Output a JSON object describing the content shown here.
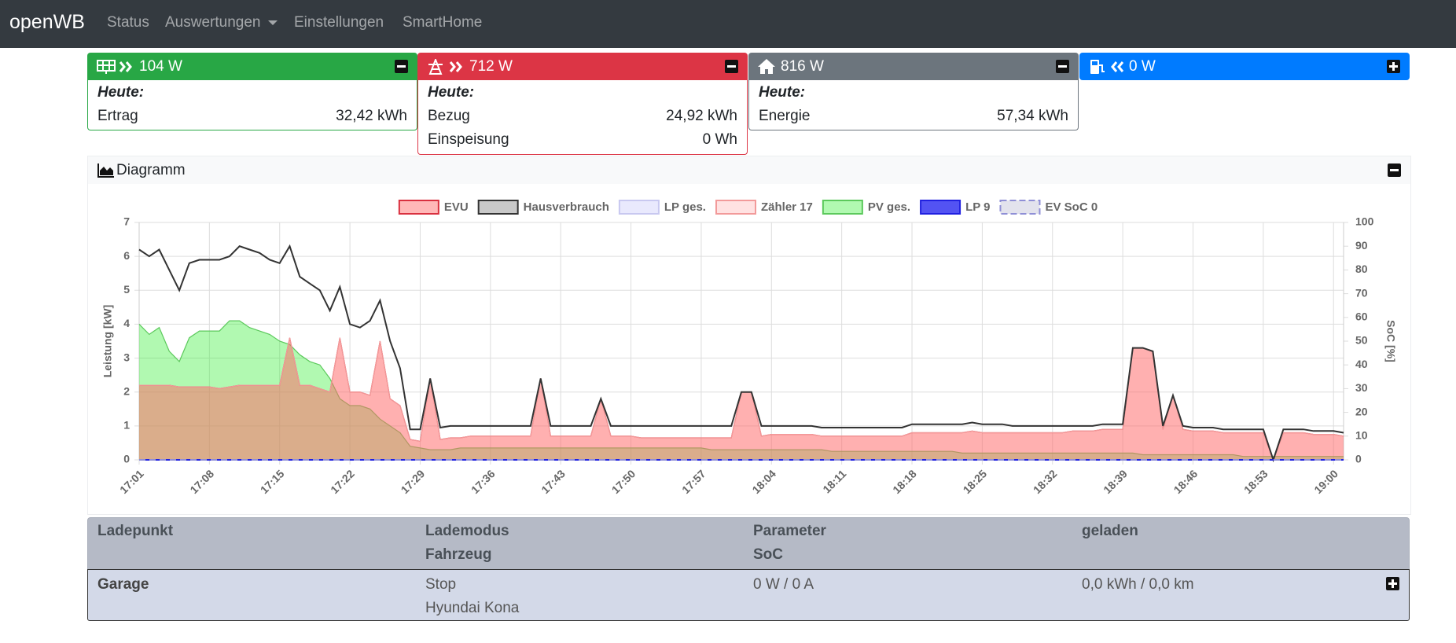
{
  "navbar": {
    "brand": "openWB",
    "links": [
      "Status",
      "Auswertungen",
      "Einstellungen",
      "SmartHome"
    ]
  },
  "cards": [
    {
      "power": "104 W",
      "heading": "Heute:",
      "rows": [
        {
          "label": "Ertrag",
          "value": "32,42 kWh"
        }
      ]
    },
    {
      "power": "712 W",
      "heading": "Heute:",
      "rows": [
        {
          "label": "Bezug",
          "value": "24,92 kWh"
        },
        {
          "label": "Einspeisung",
          "value": "0 Wh"
        }
      ]
    },
    {
      "power": "816 W",
      "heading": "Heute:",
      "rows": [
        {
          "label": "Energie",
          "value": "57,34 kWh"
        }
      ]
    },
    {
      "power": "0 W"
    }
  ],
  "diagram": {
    "title": "Diagramm"
  },
  "chart_data": {
    "type": "line",
    "y_label": "Leistung [kW]",
    "y2_label": "SoC [%]",
    "ylim": [
      0,
      7
    ],
    "yticks": [
      0,
      1,
      2,
      3,
      4,
      5,
      6,
      7
    ],
    "y2lim": [
      0,
      100
    ],
    "y2ticks": [
      0,
      10,
      20,
      30,
      40,
      50,
      60,
      70,
      80,
      90,
      100
    ],
    "grid": true,
    "x": [
      "17:01",
      null,
      null,
      null,
      null,
      null,
      null,
      "17:08",
      null,
      null,
      null,
      null,
      null,
      null,
      "17:15",
      null,
      null,
      null,
      null,
      null,
      null,
      "17:22",
      null,
      null,
      null,
      null,
      null,
      null,
      "17:29",
      null,
      null,
      null,
      null,
      null,
      null,
      "17:36",
      null,
      null,
      null,
      null,
      null,
      null,
      "17:43",
      null,
      null,
      null,
      null,
      null,
      null,
      "17:50",
      null,
      null,
      null,
      null,
      null,
      null,
      "17:57",
      null,
      null,
      null,
      null,
      null,
      null,
      "18:04",
      null,
      null,
      null,
      null,
      null,
      null,
      "18:11",
      null,
      null,
      null,
      null,
      null,
      null,
      "18:18",
      null,
      null,
      null,
      null,
      null,
      null,
      "18:25",
      null,
      null,
      null,
      null,
      null,
      null,
      "18:32",
      null,
      null,
      null,
      null,
      null,
      null,
      "18:39",
      null,
      null,
      null,
      null,
      null,
      null,
      "18:46",
      null,
      null,
      null,
      null,
      null,
      null,
      "18:53",
      null,
      null,
      null,
      null,
      null,
      null,
      "19:00",
      null
    ],
    "series": [
      {
        "name": "EVU",
        "color": "#d9303f",
        "fill": "rgba(255,40,40,0.33)",
        "area": true,
        "values": [
          2.2,
          2.2,
          2.2,
          2.2,
          2.15,
          2.15,
          2.15,
          2.15,
          2.1,
          2.15,
          2.2,
          2.2,
          2.2,
          2.2,
          2.2,
          3.6,
          2.2,
          2.2,
          2.1,
          2.0,
          3.6,
          2.0,
          2.0,
          1.9,
          3.5,
          1.8,
          1.6,
          0.6,
          0.55,
          2.4,
          0.6,
          0.65,
          0.65,
          0.7,
          0.7,
          0.7,
          0.7,
          0.7,
          0.7,
          0.7,
          2.4,
          0.7,
          0.7,
          0.7,
          0.7,
          0.7,
          1.8,
          0.7,
          0.7,
          0.7,
          0.65,
          0.65,
          0.65,
          0.65,
          0.65,
          0.65,
          0.65,
          0.65,
          0.65,
          0.65,
          2.0,
          2.0,
          0.7,
          0.75,
          0.75,
          0.75,
          0.75,
          0.75,
          0.7,
          0.7,
          0.7,
          0.7,
          0.7,
          0.7,
          0.7,
          0.7,
          0.7,
          0.8,
          0.8,
          0.8,
          0.8,
          0.8,
          0.8,
          0.85,
          0.8,
          0.8,
          0.8,
          0.8,
          0.8,
          0.8,
          0.8,
          0.8,
          0.8,
          0.85,
          0.85,
          0.85,
          0.9,
          0.9,
          0.9,
          3.3,
          3.3,
          3.2,
          0.9,
          1.9,
          0.9,
          0.85,
          0.85,
          0.85,
          0.8,
          0.8,
          0.8,
          0.8,
          0.8,
          0.0,
          0.8,
          0.8,
          0.8,
          0.75,
          0.75,
          0.75,
          0.7
        ]
      },
      {
        "name": "Hausverbrauch",
        "color": "#333333",
        "fill": "#c8c8c8",
        "area": false,
        "values": [
          6.2,
          6.0,
          6.2,
          5.6,
          5.0,
          5.8,
          5.9,
          5.9,
          5.9,
          6.0,
          6.3,
          6.2,
          6.1,
          5.9,
          5.8,
          6.3,
          5.4,
          5.2,
          5.0,
          4.4,
          5.1,
          4.0,
          3.9,
          4.1,
          4.7,
          3.5,
          2.7,
          0.9,
          0.9,
          2.4,
          0.95,
          1.0,
          1.0,
          1.0,
          1.0,
          1.0,
          1.0,
          1.0,
          1.0,
          1.0,
          2.4,
          1.0,
          1.0,
          1.0,
          1.0,
          1.0,
          1.8,
          1.0,
          1.0,
          1.0,
          1.0,
          1.0,
          1.0,
          1.0,
          1.0,
          1.0,
          1.0,
          1.0,
          1.0,
          1.0,
          2.0,
          2.0,
          1.0,
          1.0,
          1.0,
          1.0,
          1.0,
          1.0,
          0.95,
          0.95,
          0.95,
          0.95,
          0.95,
          0.95,
          0.95,
          0.95,
          0.95,
          1.05,
          1.05,
          1.05,
          1.05,
          1.05,
          1.05,
          1.1,
          1.05,
          1.05,
          1.05,
          1.0,
          1.0,
          1.0,
          1.0,
          1.0,
          1.0,
          1.0,
          1.0,
          1.0,
          1.05,
          1.05,
          1.05,
          3.3,
          3.3,
          3.2,
          1.0,
          1.9,
          1.0,
          0.95,
          0.95,
          0.95,
          0.9,
          0.9,
          0.9,
          0.9,
          0.9,
          0.0,
          0.9,
          0.9,
          0.9,
          0.85,
          0.85,
          0.85,
          0.8
        ]
      },
      {
        "name": "LP ges.",
        "color": "#c8c8f0",
        "fill": "rgba(200,200,250,0.4)",
        "area": false,
        "values": [
          0,
          0,
          0,
          0,
          0,
          0,
          0,
          0,
          0,
          0,
          0,
          0,
          0,
          0,
          0,
          0,
          0,
          0,
          0,
          0,
          0,
          0,
          0,
          0,
          0,
          0,
          0,
          0,
          0,
          0,
          0,
          0,
          0,
          0,
          0,
          0,
          0,
          0,
          0,
          0,
          0,
          0,
          0,
          0,
          0,
          0,
          0,
          0,
          0,
          0,
          0,
          0,
          0,
          0,
          0,
          0,
          0,
          0,
          0,
          0,
          0,
          0,
          0,
          0,
          0,
          0,
          0,
          0,
          0,
          0,
          0,
          0,
          0,
          0,
          0,
          0,
          0,
          0,
          0,
          0,
          0,
          0,
          0,
          0,
          0,
          0,
          0,
          0,
          0,
          0,
          0,
          0,
          0,
          0,
          0,
          0,
          0,
          0,
          0,
          0,
          0,
          0,
          0,
          0,
          0,
          0,
          0,
          0,
          0,
          0,
          0,
          0,
          0,
          0,
          0,
          0,
          0,
          0,
          0,
          0,
          0
        ]
      },
      {
        "name": "Zähler 17",
        "color": "#f29a9a",
        "fill": "rgba(255,160,160,0.3)",
        "area": true,
        "values": [
          2.2,
          2.2,
          2.2,
          2.2,
          2.15,
          2.15,
          2.15,
          2.15,
          2.1,
          2.15,
          2.2,
          2.2,
          2.2,
          2.2,
          2.2,
          3.6,
          2.2,
          2.2,
          2.1,
          2.0,
          3.6,
          2.0,
          2.0,
          1.9,
          3.5,
          1.8,
          1.6,
          0.6,
          0.55,
          2.4,
          0.6,
          0.65,
          0.65,
          0.7,
          0.7,
          0.7,
          0.7,
          0.7,
          0.7,
          0.7,
          2.4,
          0.7,
          0.7,
          0.7,
          0.7,
          0.7,
          1.8,
          0.7,
          0.7,
          0.7,
          0.65,
          0.65,
          0.65,
          0.65,
          0.65,
          0.65,
          0.65,
          0.65,
          0.65,
          0.65,
          2.0,
          2.0,
          0.7,
          0.75,
          0.75,
          0.75,
          0.75,
          0.75,
          0.7,
          0.7,
          0.7,
          0.7,
          0.7,
          0.7,
          0.7,
          0.7,
          0.7,
          0.8,
          0.8,
          0.8,
          0.8,
          0.8,
          0.8,
          0.85,
          0.8,
          0.8,
          0.8,
          0.8,
          0.8,
          0.8,
          0.8,
          0.8,
          0.8,
          0.85,
          0.85,
          0.85,
          0.9,
          0.9,
          0.9,
          3.3,
          3.3,
          3.2,
          0.9,
          1.9,
          0.9,
          0.85,
          0.85,
          0.85,
          0.8,
          0.8,
          0.8,
          0.8,
          0.8,
          0.0,
          0.8,
          0.8,
          0.8,
          0.75,
          0.75,
          0.75,
          0.7
        ]
      },
      {
        "name": "PV ges.",
        "color": "#5cc95c",
        "fill": "rgba(60,240,60,0.4)",
        "area": true,
        "values": [
          4.0,
          3.7,
          3.9,
          3.2,
          2.9,
          3.6,
          3.8,
          3.8,
          3.8,
          4.1,
          4.1,
          3.9,
          3.8,
          3.7,
          3.5,
          3.4,
          3.1,
          2.9,
          2.8,
          2.4,
          1.8,
          1.6,
          1.6,
          1.5,
          1.2,
          1.0,
          0.8,
          0.4,
          0.35,
          0.3,
          0.3,
          0.3,
          0.35,
          0.35,
          0.35,
          0.35,
          0.35,
          0.35,
          0.35,
          0.35,
          0.35,
          0.35,
          0.35,
          0.35,
          0.35,
          0.35,
          0.35,
          0.35,
          0.35,
          0.35,
          0.35,
          0.35,
          0.35,
          0.35,
          0.35,
          0.35,
          0.35,
          0.3,
          0.3,
          0.3,
          0.3,
          0.3,
          0.3,
          0.3,
          0.3,
          0.3,
          0.3,
          0.3,
          0.3,
          0.25,
          0.25,
          0.25,
          0.25,
          0.25,
          0.25,
          0.25,
          0.25,
          0.25,
          0.25,
          0.25,
          0.25,
          0.25,
          0.2,
          0.2,
          0.2,
          0.2,
          0.2,
          0.2,
          0.2,
          0.2,
          0.2,
          0.2,
          0.2,
          0.2,
          0.2,
          0.2,
          0.2,
          0.2,
          0.2,
          0.2,
          0.15,
          0.15,
          0.15,
          0.15,
          0.15,
          0.15,
          0.15,
          0.15,
          0.15,
          0.15,
          0.1,
          0.1,
          0.1,
          0.1,
          0.1,
          0.1,
          0.1,
          0.1,
          0.1,
          0.1,
          0.1
        ]
      },
      {
        "name": "LP 9",
        "color": "#2020e0",
        "fill": "rgba(40,40,240,0.8)",
        "area": false,
        "values": [
          0,
          0,
          0,
          0,
          0,
          0,
          0,
          0,
          0,
          0,
          0,
          0,
          0,
          0,
          0,
          0,
          0,
          0,
          0,
          0,
          0,
          0,
          0,
          0,
          0,
          0,
          0,
          0,
          0,
          0,
          0,
          0,
          0,
          0,
          0,
          0,
          0,
          0,
          0,
          0,
          0,
          0,
          0,
          0,
          0,
          0,
          0,
          0,
          0,
          0,
          0,
          0,
          0,
          0,
          0,
          0,
          0,
          0,
          0,
          0,
          0,
          0,
          0,
          0,
          0,
          0,
          0,
          0,
          0,
          0,
          0,
          0,
          0,
          0,
          0,
          0,
          0,
          0,
          0,
          0,
          0,
          0,
          0,
          0,
          0,
          0,
          0,
          0,
          0,
          0,
          0,
          0,
          0,
          0,
          0,
          0,
          0,
          0,
          0,
          0,
          0,
          0,
          0,
          0,
          0,
          0,
          0,
          0,
          0,
          0,
          0,
          0,
          0,
          0,
          0,
          0,
          0,
          0,
          0,
          0,
          0
        ]
      },
      {
        "name": "EV SoC 0",
        "color": "#8f8fd6",
        "fill": "rgba(200,200,220,0.5)",
        "area": false,
        "dashed": true,
        "axis": "y2",
        "values": [
          0,
          0,
          0,
          0,
          0,
          0,
          0,
          0,
          0,
          0,
          0,
          0,
          0,
          0,
          0,
          0,
          0,
          0,
          0,
          0,
          0,
          0,
          0,
          0,
          0,
          0,
          0,
          0,
          0,
          0,
          0,
          0,
          0,
          0,
          0,
          0,
          0,
          0,
          0,
          0,
          0,
          0,
          0,
          0,
          0,
          0,
          0,
          0,
          0,
          0,
          0,
          0,
          0,
          0,
          0,
          0,
          0,
          0,
          0,
          0,
          0,
          0,
          0,
          0,
          0,
          0,
          0,
          0,
          0,
          0,
          0,
          0,
          0,
          0,
          0,
          0,
          0,
          0,
          0,
          0,
          0,
          0,
          0,
          0,
          0,
          0,
          0,
          0,
          0,
          0,
          0,
          0,
          0,
          0,
          0,
          0,
          0,
          0,
          0,
          0,
          0,
          0,
          0,
          0,
          0,
          0,
          0,
          0,
          0,
          0,
          0,
          0,
          0,
          0,
          0,
          0,
          0,
          0,
          0,
          0,
          0
        ]
      }
    ]
  },
  "table": {
    "header": [
      [
        "Ladepunkt"
      ],
      [
        "Lademodus",
        "Fahrzeug"
      ],
      [
        "Parameter",
        "SoC"
      ],
      [
        "geladen"
      ]
    ],
    "rows": [
      [
        [
          "Garage"
        ],
        [
          "Stop",
          "Hyundai Kona"
        ],
        [
          "0 W / 0 A"
        ],
        [
          "0,0 kWh / 0,0 km"
        ]
      ]
    ]
  }
}
